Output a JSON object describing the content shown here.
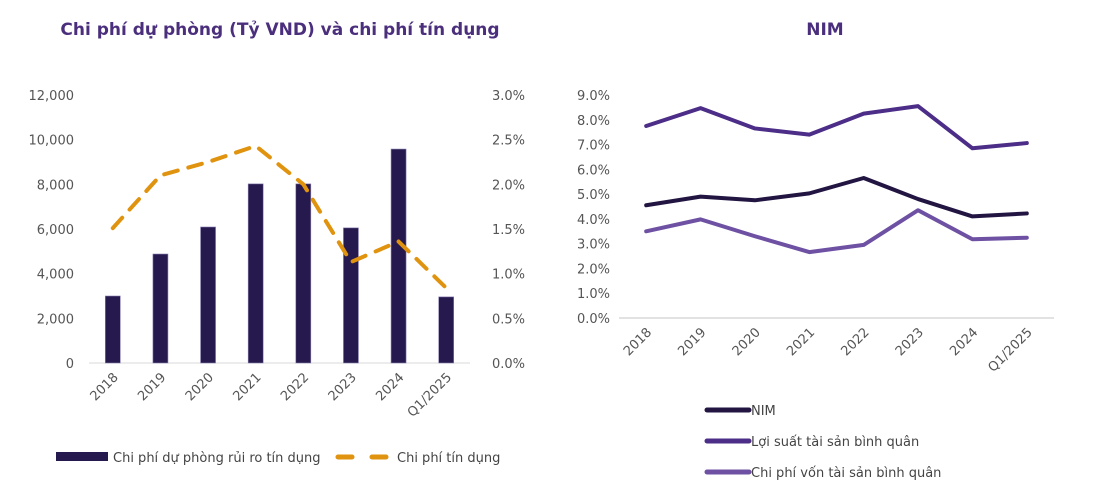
{
  "chart_data": [
    {
      "type": "bar+line",
      "title": "Chi phí dự phòng (Tỷ VND) và chi phí tín dụng",
      "categories": [
        "2018",
        "2019",
        "2020",
        "2021",
        "2022",
        "2023",
        "2024",
        "Q1/2025"
      ],
      "left_axis": {
        "ylim": [
          0,
          12000
        ],
        "ticks": [
          "0",
          "2,000",
          "4,000",
          "6,000",
          "8,000",
          "10,000",
          "12,000"
        ],
        "tick_values": [
          0,
          2000,
          4000,
          6000,
          8000,
          10000,
          12000
        ]
      },
      "right_axis": {
        "ylim": [
          0,
          3.0
        ],
        "ticks": [
          "0.0%",
          "0.5%",
          "1.0%",
          "1.5%",
          "2.0%",
          "2.5%",
          "3.0%"
        ],
        "tick_values": [
          0,
          0.5,
          1.0,
          1.5,
          2.0,
          2.5,
          3.0
        ]
      },
      "series": [
        {
          "name": "Chi phí dự phòng rủi ro tín dụng",
          "type": "bar",
          "axis": "left",
          "color": "#26194d",
          "values": [
            3000,
            4880,
            6090,
            8020,
            8020,
            6050,
            9580,
            2960
          ]
        },
        {
          "name": "Chi phí tín dụng",
          "type": "line",
          "style": "dashed",
          "axis": "right",
          "color": "#e0930e",
          "values": [
            1.51,
            2.1,
            2.25,
            2.43,
            2.0,
            1.13,
            1.36,
            0.84
          ]
        }
      ],
      "legend": "bottom"
    },
    {
      "type": "line",
      "title": "NIM",
      "categories": [
        "2018",
        "2019",
        "2020",
        "2021",
        "2022",
        "2023",
        "2024",
        "Q1/2025"
      ],
      "ylim": [
        0,
        9.0
      ],
      "ticks": [
        "0.0%",
        "1.0%",
        "2.0%",
        "3.0%",
        "4.0%",
        "5.0%",
        "6.0%",
        "7.0%",
        "8.0%",
        "9.0%"
      ],
      "tick_values": [
        0,
        1,
        2,
        3,
        4,
        5,
        6,
        7,
        8,
        9
      ],
      "series": [
        {
          "name": "NIM",
          "color": "#221542",
          "values": [
            4.55,
            4.9,
            4.75,
            5.03,
            5.65,
            4.8,
            4.1,
            4.22
          ]
        },
        {
          "name": "Lợi suất tài sản bình quân",
          "color": "#4c2d87",
          "values": [
            7.75,
            8.47,
            7.65,
            7.4,
            8.25,
            8.55,
            6.85,
            7.06
          ]
        },
        {
          "name": "Chi phí vốn tài sản bình quân",
          "color": "#6e51a3",
          "values": [
            3.5,
            3.98,
            3.3,
            2.66,
            2.95,
            4.35,
            3.18,
            3.24
          ]
        }
      ],
      "legend": "bottom"
    }
  ]
}
